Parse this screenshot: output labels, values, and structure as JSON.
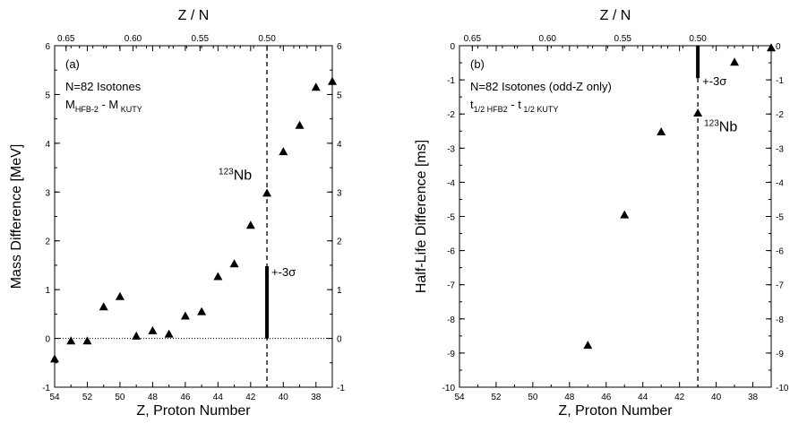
{
  "chart_data": [
    {
      "panel": "(a)",
      "type": "scatter",
      "xlabel": "Z, Proton Number",
      "ylabel": "Mass Difference [MeV]",
      "top_axis_label": "Z / N",
      "xlim": [
        54,
        37
      ],
      "ylim": [
        -1,
        6
      ],
      "x_ticks": [
        "54",
        "52",
        "50",
        "48",
        "46",
        "44",
        "42",
        "40",
        "38"
      ],
      "y_ticks": [
        "-1",
        "0",
        "1",
        "2",
        "3",
        "4",
        "5",
        "6"
      ],
      "top_ticks": [
        "0.65",
        "0.60",
        "0.55",
        "0.50"
      ],
      "top_tick_values": [
        0.65,
        0.6,
        0.55,
        0.5
      ],
      "text_line1": "N=82 Isotones",
      "text_line2_main": "M",
      "text_line2_sub1": "HFB-2",
      "text_line2_mid": " - M",
      "text_line2_sub2": " KUTY",
      "nb_label_sup": "123",
      "nb_label": "Nb",
      "sigma_label": "+-3σ",
      "zero_line": true,
      "vertical_dashed_x": 41,
      "error_bar": {
        "x": 41,
        "y_from": 0,
        "y_to": 1.48
      },
      "x": [
        54,
        53,
        52,
        51,
        50,
        49,
        48,
        47,
        46,
        45,
        44,
        43,
        42,
        41,
        40,
        39,
        38,
        37
      ],
      "y": [
        -0.42,
        -0.05,
        -0.05,
        0.65,
        0.86,
        0.05,
        0.16,
        0.09,
        0.46,
        0.55,
        1.27,
        1.53,
        2.32,
        2.98,
        3.83,
        4.37,
        5.15,
        5.27
      ]
    },
    {
      "panel": "(b)",
      "type": "scatter",
      "xlabel": "Z, Proton Number",
      "ylabel": "Half-Life Difference [ms]",
      "top_axis_label": "Z / N",
      "xlim": [
        54,
        37
      ],
      "ylim": [
        -10,
        0
      ],
      "x_ticks": [
        "54",
        "52",
        "50",
        "48",
        "46",
        "44",
        "42",
        "40",
        "38"
      ],
      "y_ticks": [
        "-10",
        "-9",
        "-8",
        "-7",
        "-6",
        "-5",
        "-4",
        "-3",
        "-2",
        "-1",
        "0"
      ],
      "top_ticks": [
        "0.65",
        "0.60",
        "0.55",
        "0.50"
      ],
      "top_tick_values": [
        0.65,
        0.6,
        0.55,
        0.5
      ],
      "text_line1": "N=82 Isotones (odd-Z only)",
      "text_line2_main": "t",
      "text_line2_sub1": "1/2 HFB2",
      "text_line2_mid": " - t",
      "text_line2_sub2": " 1/2 KUTY",
      "nb_label_sup": "123",
      "nb_label": "Nb",
      "sigma_label": "+-3σ",
      "zero_line": false,
      "vertical_dashed_x": 41,
      "error_bar": {
        "x": 41,
        "y_from": 0,
        "y_to": -0.95
      },
      "x": [
        47,
        45,
        43,
        41,
        39,
        37
      ],
      "y": [
        -8.77,
        -4.95,
        -2.52,
        -1.97,
        -0.48,
        -0.06
      ]
    }
  ]
}
